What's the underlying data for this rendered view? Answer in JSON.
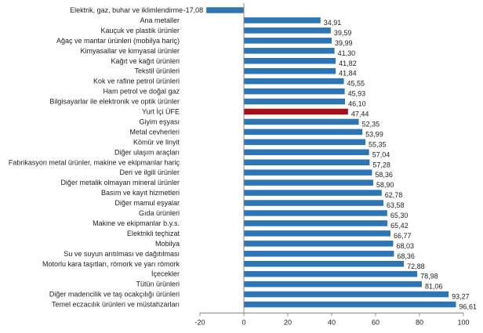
{
  "chart_data": {
    "type": "bar",
    "orientation": "horizontal",
    "title": "",
    "xlabel": "",
    "ylabel": "",
    "xlim": [
      -20,
      100
    ],
    "xticks": [
      -20,
      0,
      20,
      40,
      60,
      80,
      100
    ],
    "grid": false,
    "colors": {
      "default": "#2e75b6",
      "highlight": "#a50f15"
    },
    "highlight_category": "Yurt İçi ÜFE",
    "categories": [
      "Elektrik, gaz, buhar ve iklimlendirme",
      "Ana metaller",
      "Kauçuk ve plastik ürünler",
      "Ağaç ve mantar ürünleri (mobilya hariç)",
      "Kimyasallar ve kimyasal ürünler",
      "Kağıt ve kağıt ürünleri",
      "Tekstil ürünleri",
      "Kok ve rafine petrol ürünleri",
      "Ham petrol ve doğal gaz",
      "Bilgisayarlar ile elektronik ve optik ürünler",
      "Yurt İçi ÜFE",
      "Giyim eşyası",
      "Metal cevherleri",
      "Kömür ve linyit",
      "Diğer ulaşım araçları",
      "Fabrikasyon metal ürünler, makine ve ekipmanlar hariç",
      "Deri ve ilgili ürünler",
      "Diğer metalik olmayan mineral ürünler",
      "Basım ve kayıt hizmetleri",
      "Diğer mamul eşyalar",
      "Gıda ürünleri",
      "Makine ve ekipmanlar b.y.s.",
      "Elektrikli teçhizat",
      "Mobilya",
      "Su ve suyun arıtılması ve dağıtılması",
      "Motorlu kara taşıtları, römork ve yarı römork",
      "İçecekler",
      "Tütün ürünleri",
      "Diğer madencilik ve taş ocakçılığı ürünleri",
      "Temel eczacılık ürünleri ve müstahzarları"
    ],
    "values": [
      -17.08,
      34.91,
      39.59,
      39.99,
      41.3,
      41.82,
      41.84,
      45.55,
      45.93,
      46.1,
      47.44,
      52.35,
      53.99,
      55.35,
      57.04,
      57.28,
      58.36,
      58.9,
      62.78,
      63.58,
      65.3,
      65.42,
      66.77,
      68.03,
      68.36,
      72.88,
      78.98,
      81.06,
      93.27,
      96.61
    ],
    "value_labels": [
      "-17,08",
      "34,91",
      "39,59",
      "39,99",
      "41,30",
      "41,82",
      "41,84",
      "45,55",
      "45,93",
      "46,10",
      "47,44",
      "52,35",
      "53,99",
      "55,35",
      "57,04",
      "57,28",
      "58,36",
      "58,90",
      "62,78",
      "63,58",
      "65,30",
      "65,42",
      "66,77",
      "68,03",
      "68,36",
      "72,88",
      "78,98",
      "81,06",
      "93,27",
      "96,61"
    ]
  }
}
